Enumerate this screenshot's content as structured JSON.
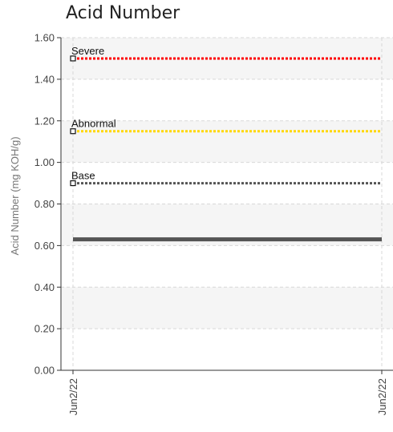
{
  "chart_data": {
    "type": "line",
    "title": "Acid Number",
    "ylabel": "Acid Number (mg KOH/g)",
    "xlabel": "",
    "ylim": [
      0,
      1.6
    ],
    "yticks": [
      0.0,
      0.2,
      0.4,
      0.6,
      0.8,
      1.0,
      1.2,
      1.4,
      1.6
    ],
    "ytick_labels": [
      "0.00",
      "0.20",
      "0.40",
      "0.60",
      "0.80",
      "1.00",
      "1.20",
      "1.40",
      "1.60"
    ],
    "x_tick_labels": [
      "Jun2/22",
      "Jun2/22"
    ],
    "grid": true,
    "reference_lines": [
      {
        "label": "Severe",
        "value": 1.5,
        "color": "#ff0000"
      },
      {
        "label": "Abnormal",
        "value": 1.15,
        "color": "#ffd700"
      },
      {
        "label": "Base",
        "value": 0.9,
        "color": "#555555"
      }
    ],
    "series": [
      {
        "values": [
          0.63,
          0.63
        ],
        "color": "#555555"
      }
    ]
  }
}
